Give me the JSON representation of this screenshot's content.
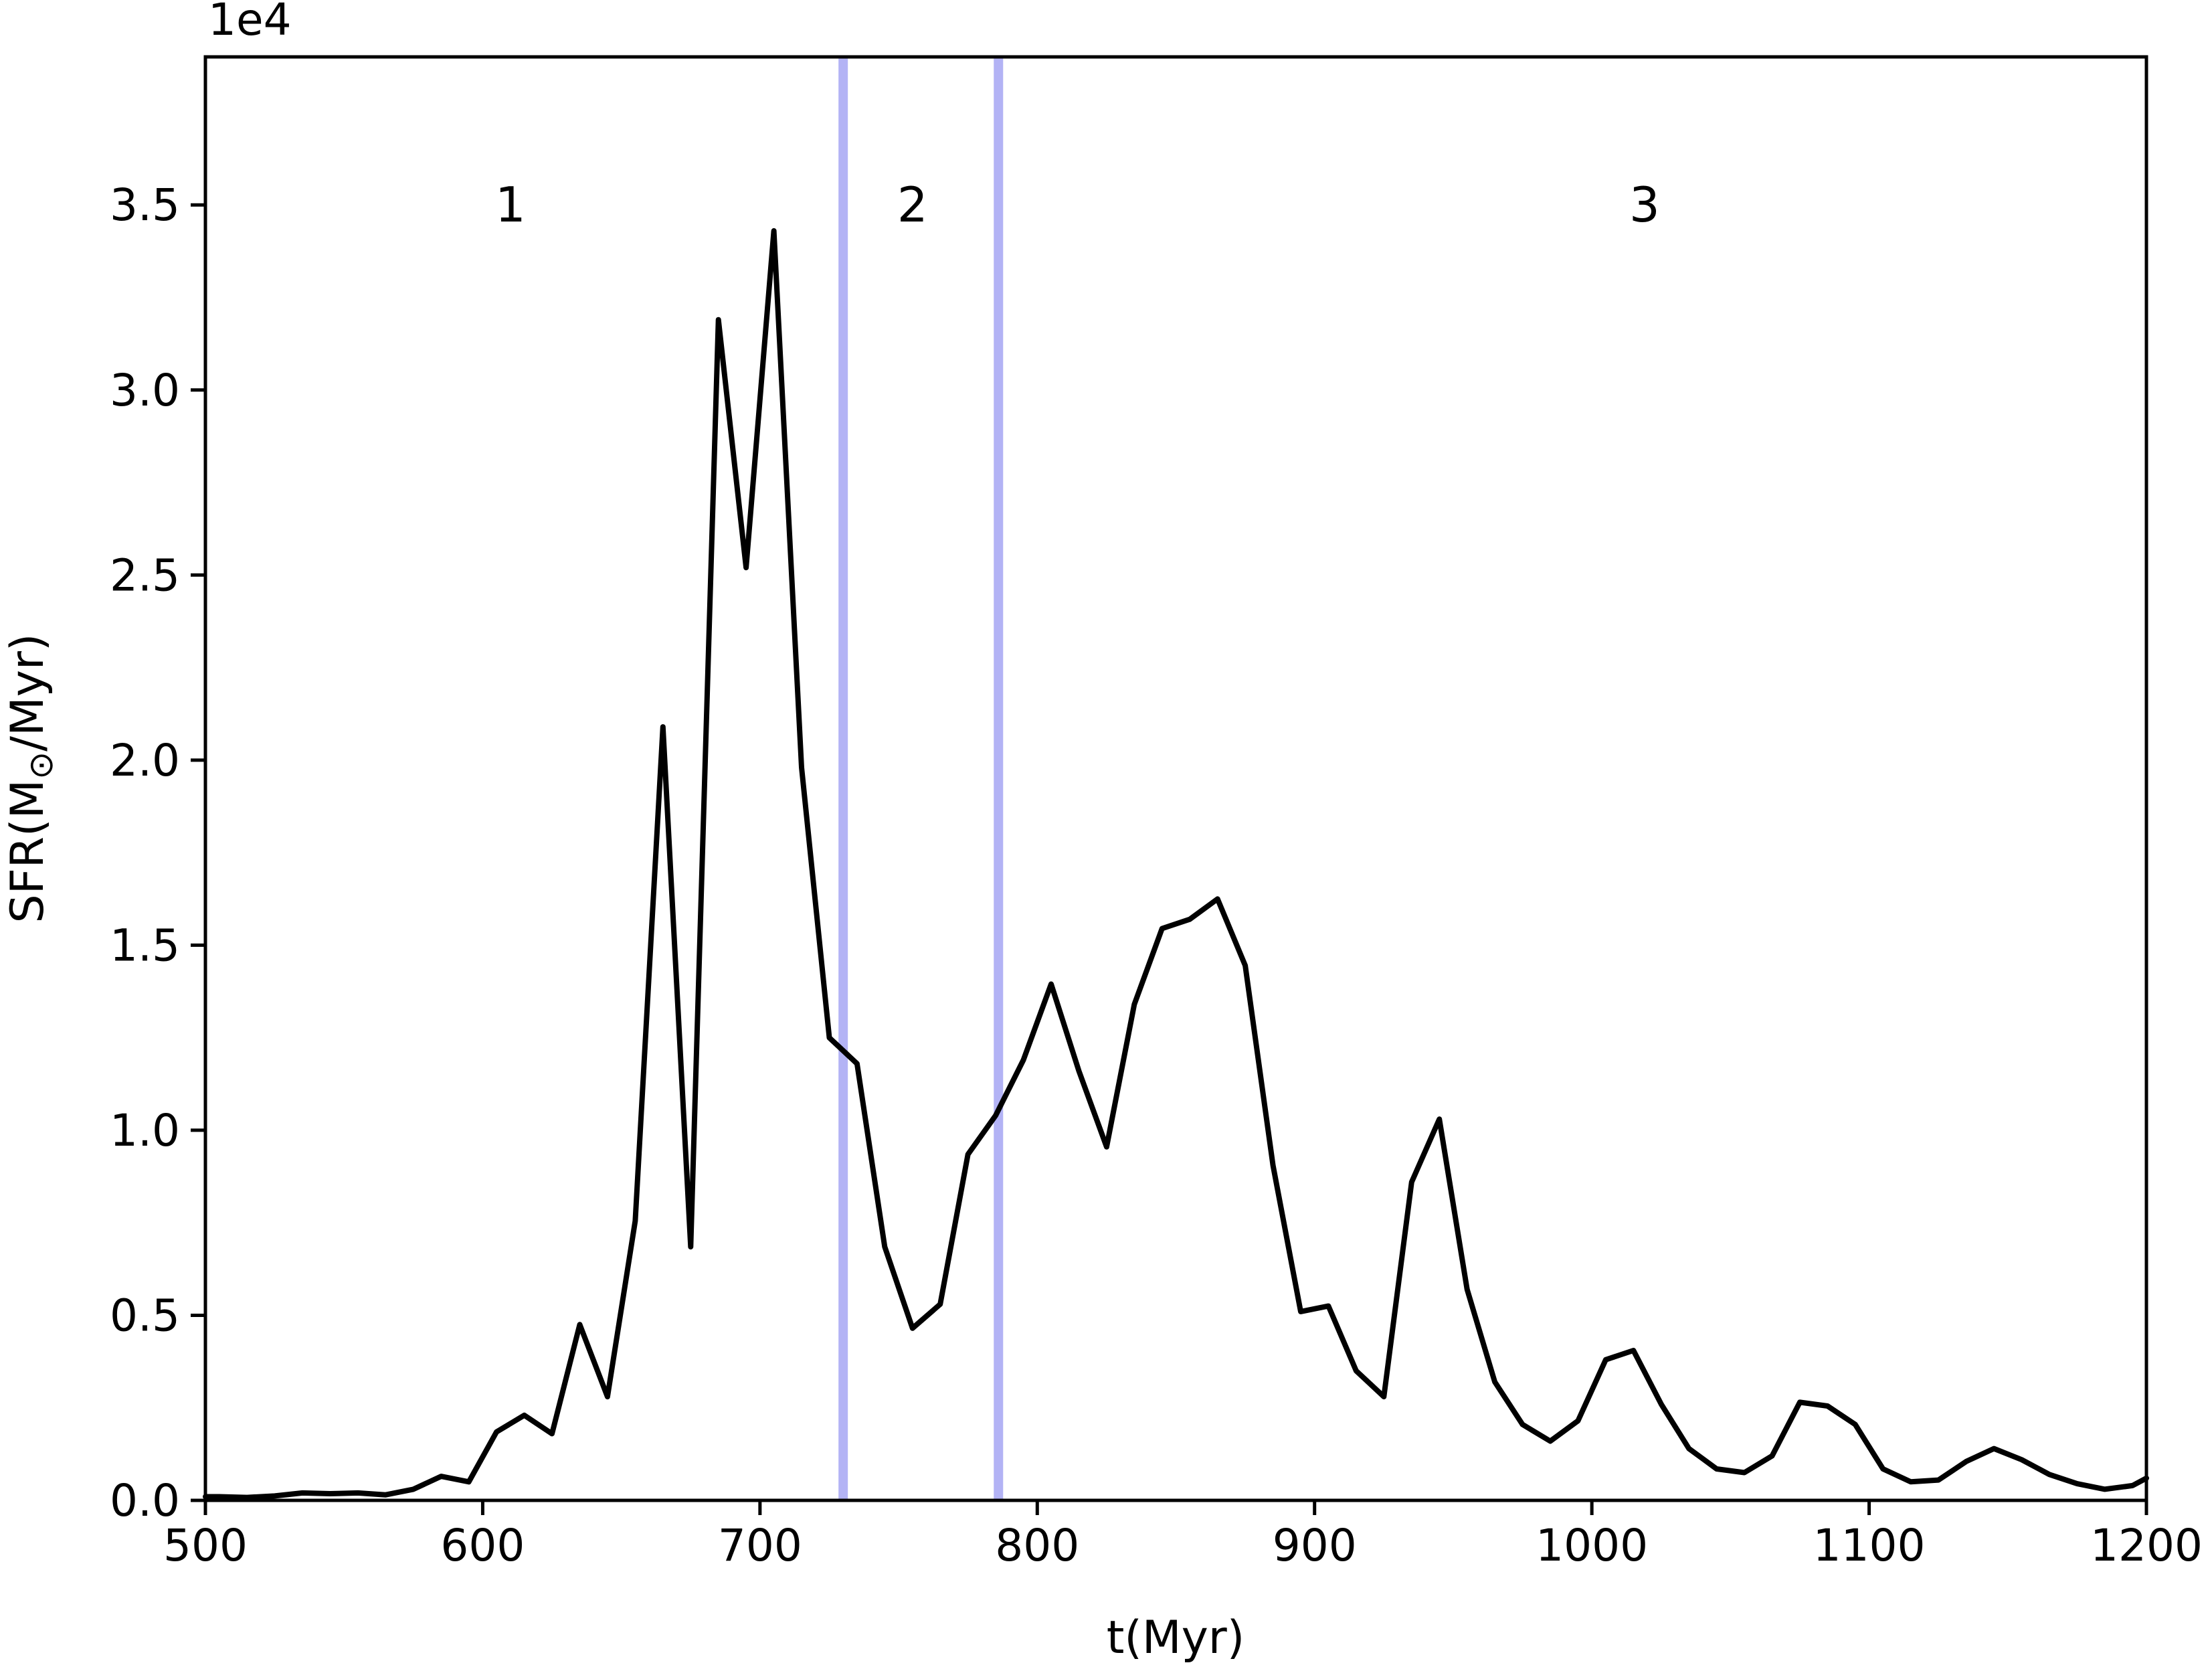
{
  "chart_data": {
    "type": "line",
    "xlabel": "t(Myr)",
    "ylabel_main": "SFR(M",
    "ylabel_sub": "⊙",
    "ylabel_end": "/Myr)",
    "y_offset_text": "1e4",
    "xlim": [
      500,
      1200
    ],
    "ylim": [
      0,
      3.9
    ],
    "x_ticks": [
      500,
      600,
      700,
      800,
      900,
      1000,
      1100,
      1200
    ],
    "x_tick_labels": [
      "500",
      "600",
      "700",
      "800",
      "900",
      "1000",
      "1100",
      "1200"
    ],
    "y_ticks": [
      0,
      0.5,
      1.0,
      1.5,
      2.0,
      2.5,
      3.0,
      3.5
    ],
    "y_tick_labels": [
      "0.0",
      "0.5",
      "1.0",
      "1.5",
      "2.0",
      "2.5",
      "3.0",
      "3.5"
    ],
    "grid": false,
    "series": [
      {
        "color": "#000000",
        "x": [
          500,
          505,
          515,
          525,
          535,
          545,
          555,
          565,
          575,
          585,
          595,
          605,
          615,
          625,
          635,
          645,
          655,
          665,
          675,
          685,
          695,
          705,
          715,
          725,
          735,
          745,
          755,
          765,
          775,
          785,
          795,
          805,
          815,
          825,
          835,
          845,
          855,
          865,
          875,
          885,
          895,
          905,
          915,
          925,
          935,
          945,
          955,
          965,
          975,
          985,
          995,
          1005,
          1015,
          1025,
          1035,
          1045,
          1055,
          1065,
          1075,
          1085,
          1095,
          1105,
          1115,
          1125,
          1135,
          1145,
          1155,
          1165,
          1175,
          1185,
          1195,
          1200
        ],
        "y": [
          0.01,
          0.01,
          0.008,
          0.012,
          0.02,
          0.018,
          0.02,
          0.015,
          0.03,
          0.065,
          0.05,
          0.185,
          0.23,
          0.18,
          0.475,
          0.28,
          0.755,
          2.09,
          0.685,
          3.19,
          2.52,
          3.43,
          1.98,
          1.25,
          1.18,
          0.685,
          0.465,
          0.53,
          0.935,
          1.04,
          1.19,
          1.395,
          1.16,
          0.955,
          1.34,
          1.545,
          1.57,
          1.625,
          1.445,
          0.905,
          0.51,
          0.525,
          0.35,
          0.28,
          0.86,
          1.03,
          0.57,
          0.32,
          0.205,
          0.16,
          0.215,
          0.38,
          0.405,
          0.26,
          0.14,
          0.085,
          0.075,
          0.12,
          0.265,
          0.255,
          0.205,
          0.085,
          0.05,
          0.055,
          0.105,
          0.14,
          0.11,
          0.07,
          0.045,
          0.03,
          0.04,
          0.06
        ]
      }
    ],
    "vertical_lines": [
      {
        "x": 730,
        "color": "#b3b3f5"
      },
      {
        "x": 786,
        "color": "#b3b3f5"
      }
    ],
    "region_labels": [
      {
        "text": "1",
        "x": 610,
        "y": 3.5
      },
      {
        "text": "2",
        "x": 755,
        "y": 3.5
      },
      {
        "text": "3",
        "x": 1019,
        "y": 3.5
      }
    ]
  }
}
